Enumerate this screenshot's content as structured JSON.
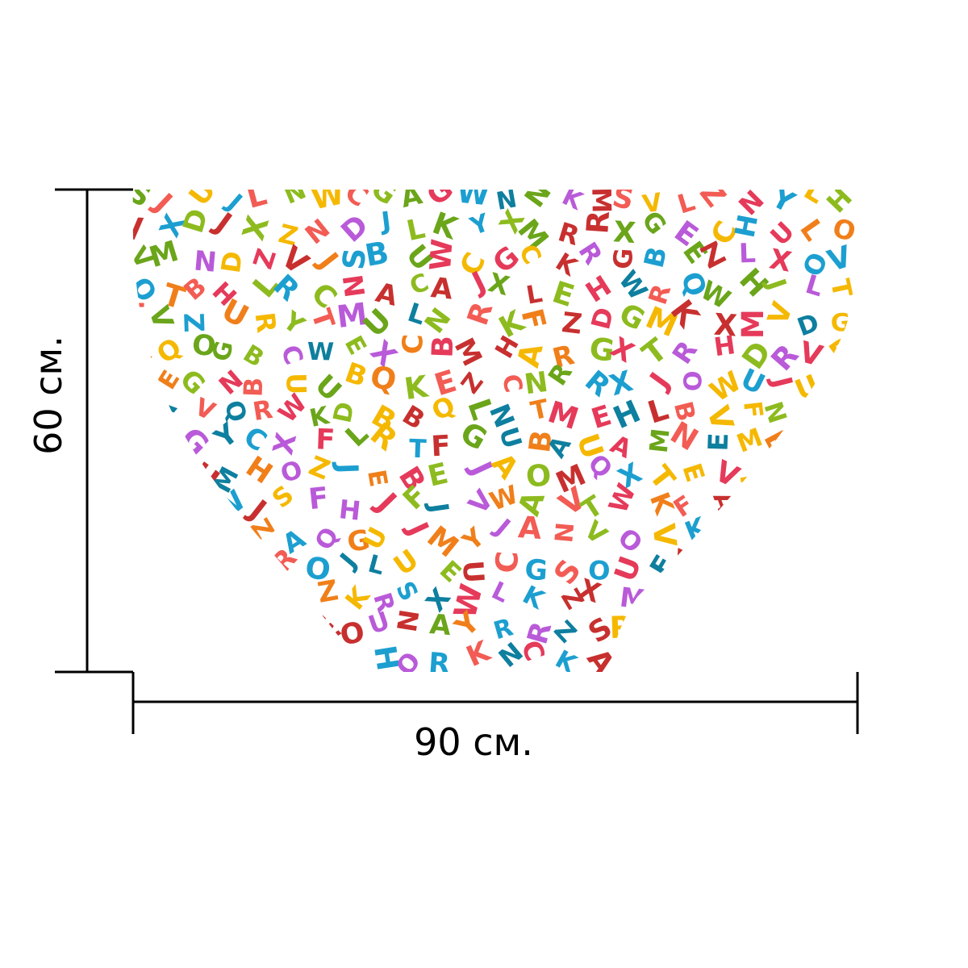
{
  "dimensions": {
    "width_label": "90 см.",
    "height_label": "60 см."
  },
  "product": {
    "shape": "heart-half",
    "pattern": "scattered cartoon alphabet letters",
    "letters": [
      "A",
      "B",
      "C",
      "D",
      "E",
      "F",
      "G",
      "H",
      "J",
      "K",
      "L",
      "M",
      "N",
      "O",
      "Q",
      "R",
      "S",
      "T",
      "U",
      "V",
      "W",
      "X",
      "Y",
      "Z"
    ],
    "palette": [
      "#e53a5a",
      "#f07f1a",
      "#f5b800",
      "#8dbb1f",
      "#1c9fd0",
      "#0e7f9f",
      "#b95ad9",
      "#c7302f",
      "#f25c54",
      "#6aa51a"
    ]
  },
  "colors": {
    "background": "#ffffff",
    "dimension_lines": "#000000"
  }
}
